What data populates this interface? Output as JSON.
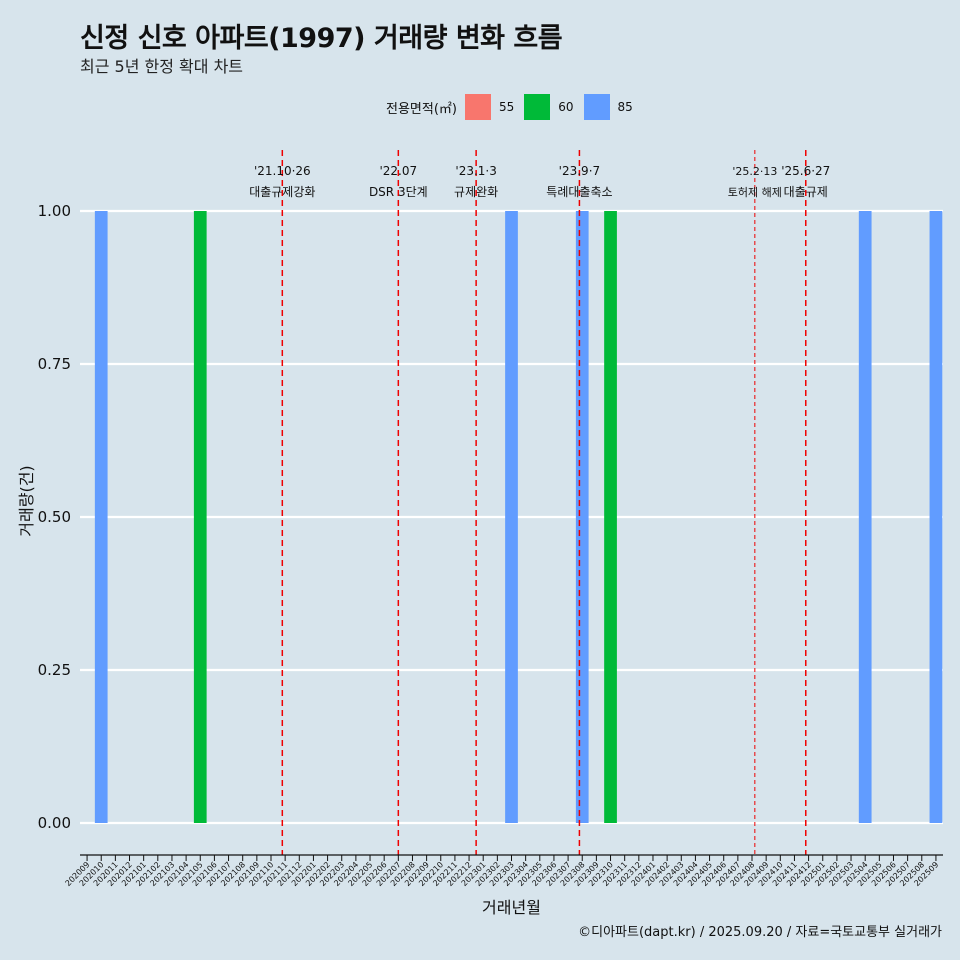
{
  "title": "신정 신호 아파트(1997) 거래량 변화 흐름",
  "subtitle": "최근 5년 한정 확대 차트",
  "caption": "©디아파트(dapt.kr) / 2025.09.20 / 자료=국토교통부 실거래가",
  "legend": {
    "title": "전용면적(㎡)",
    "items": [
      {
        "label": "55",
        "color": "#f8766d"
      },
      {
        "label": "60",
        "color": "#00ba38"
      },
      {
        "label": "85",
        "color": "#619cff"
      }
    ]
  },
  "chart_data": {
    "type": "bar",
    "title": "신정 신호 아파트(1997) 거래량 변화 흐름",
    "xlabel": "거래년월",
    "ylabel": "거래량(건)",
    "ylim": [
      0,
      1
    ],
    "yticks": [
      "0.00",
      "0.25",
      "0.50",
      "0.75",
      "1.00"
    ],
    "categories": [
      "202009",
      "202010",
      "202011",
      "202012",
      "202101",
      "202102",
      "202103",
      "202104",
      "202105",
      "202106",
      "202107",
      "202108",
      "202109",
      "202110",
      "202111",
      "202112",
      "202201",
      "202202",
      "202203",
      "202204",
      "202205",
      "202206",
      "202207",
      "202208",
      "202209",
      "202210",
      "202211",
      "202212",
      "202301",
      "202302",
      "202303",
      "202304",
      "202305",
      "202306",
      "202307",
      "202308",
      "202309",
      "202310",
      "202311",
      "202312",
      "202401",
      "202402",
      "202403",
      "202404",
      "202405",
      "202406",
      "202407",
      "202408",
      "202409",
      "202410",
      "202411",
      "202412",
      "202501",
      "202502",
      "202503",
      "202504",
      "202505",
      "202506",
      "202507",
      "202508",
      "202509"
    ],
    "series": [
      {
        "name": "55",
        "color": "#f8766d",
        "points": []
      },
      {
        "name": "60",
        "color": "#00ba38",
        "points": [
          {
            "x": "202105",
            "y": 1
          },
          {
            "x": "202310",
            "y": 1
          }
        ]
      },
      {
        "name": "85",
        "color": "#619cff",
        "points": [
          {
            "x": "202010",
            "y": 1
          },
          {
            "x": "202303",
            "y": 1
          },
          {
            "x": "202308",
            "y": 1
          },
          {
            "x": "202504",
            "y": 1
          },
          {
            "x": "202509",
            "y": 1
          }
        ]
      }
    ],
    "annotations": [
      {
        "x": 2021.8167,
        "date": "'21.10·26",
        "label": "대출규제강화",
        "style": "dashed"
      },
      {
        "x": 2022.5,
        "date": "'22.07",
        "label": "DSR 3단계",
        "style": "dashed"
      },
      {
        "x": 2022.9583,
        "date": "'23.1·3",
        "label": "규제완화",
        "style": "dashed"
      },
      {
        "x": 2023.5667,
        "date": "'23.9·7",
        "label": "특례대출축소",
        "style": "dashed"
      },
      {
        "x": 2024.6,
        "date": "'25.2·13",
        "label": "토허제 해제",
        "style": "dotted"
      },
      {
        "x": 2024.9,
        "date": "'25.6·27",
        "label": "대출규제",
        "style": "dashed"
      }
    ]
  }
}
